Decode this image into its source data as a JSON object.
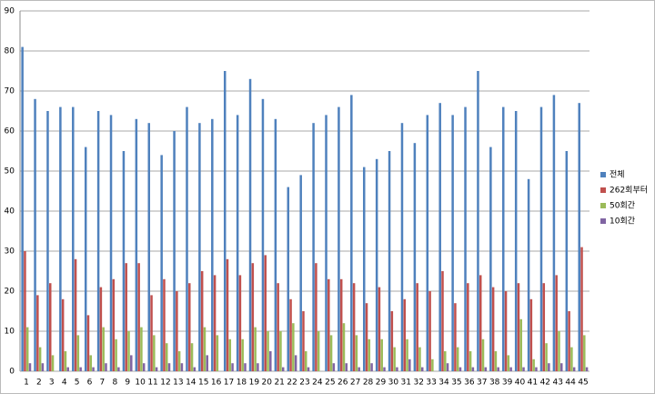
{
  "chart_data": {
    "type": "bar",
    "categories": [
      "1",
      "2",
      "3",
      "4",
      "5",
      "6",
      "7",
      "8",
      "9",
      "10",
      "11",
      "12",
      "13",
      "14",
      "15",
      "16",
      "17",
      "18",
      "19",
      "20",
      "21",
      "22",
      "23",
      "24",
      "25",
      "26",
      "27",
      "28",
      "29",
      "30",
      "31",
      "32",
      "33",
      "34",
      "35",
      "36",
      "37",
      "38",
      "39",
      "40",
      "41",
      "42",
      "43",
      "44",
      "45"
    ],
    "series": [
      {
        "name": "전체",
        "color": "#4f81bd",
        "values": [
          81,
          68,
          65,
          66,
          66,
          56,
          65,
          64,
          55,
          63,
          62,
          54,
          60,
          66,
          62,
          63,
          75,
          64,
          73,
          68,
          63,
          46,
          49,
          62,
          64,
          66,
          69,
          51,
          53,
          55,
          62,
          57,
          64,
          67,
          64,
          66,
          75,
          56,
          66,
          65,
          48,
          66,
          69,
          55,
          67
        ]
      },
      {
        "name": "262회부터",
        "color": "#c0504d",
        "values": [
          30,
          19,
          22,
          18,
          28,
          14,
          21,
          23,
          27,
          27,
          19,
          23,
          20,
          22,
          25,
          24,
          28,
          24,
          27,
          29,
          22,
          18,
          15,
          27,
          23,
          23,
          22,
          17,
          21,
          15,
          18,
          22,
          20,
          25,
          17,
          22,
          24,
          21,
          20,
          22,
          18,
          22,
          24,
          15,
          31
        ]
      },
      {
        "name": "50회간",
        "color": "#9bbb59",
        "values": [
          11,
          6,
          4,
          5,
          9,
          4,
          11,
          8,
          10,
          11,
          9,
          7,
          5,
          7,
          11,
          9,
          8,
          8,
          11,
          10,
          10,
          12,
          5,
          10,
          9,
          12,
          9,
          8,
          8,
          6,
          8,
          6,
          3,
          5,
          6,
          5,
          8,
          5,
          4,
          13,
          3,
          7,
          10,
          6,
          9
        ]
      },
      {
        "name": "10회간",
        "color": "#8064a2",
        "values": [
          2,
          2,
          0,
          1,
          1,
          1,
          2,
          1,
          4,
          2,
          1,
          2,
          2,
          1,
          4,
          0,
          2,
          2,
          2,
          5,
          1,
          4,
          1,
          0,
          2,
          2,
          1,
          2,
          1,
          1,
          3,
          1,
          0,
          2,
          1,
          1,
          1,
          1,
          1,
          1,
          1,
          2,
          2,
          1,
          1
        ]
      }
    ],
    "ylim": [
      0,
      90
    ],
    "yticks": [
      0,
      10,
      20,
      30,
      40,
      50,
      60,
      70,
      80,
      90
    ],
    "grid": true,
    "legend": "right"
  }
}
